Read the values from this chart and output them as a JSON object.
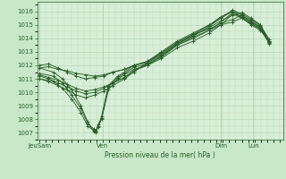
{
  "title": "Pression niveau de la mer( hPa )",
  "bg_color": "#c8e8c8",
  "plot_bg_color": "#d8efd8",
  "line_color": "#2a5e2a",
  "grid_color": "#b0d4b0",
  "tick_color": "#2a5e2a",
  "spine_color": "#2a5e2a",
  "ylim": [
    1006.5,
    1016.7
  ],
  "yticks": [
    1007,
    1008,
    1009,
    1010,
    1011,
    1012,
    1013,
    1014,
    1015,
    1016
  ],
  "xtick_labels": [
    "JeuSam",
    "Ven",
    "Dim",
    "Lun"
  ],
  "xtick_positions": [
    0.0,
    0.275,
    0.79,
    0.93
  ],
  "xlim": [
    -0.01,
    1.06
  ],
  "lines": [
    [
      0.0,
      1011.8,
      0.06,
      1011.5,
      0.1,
      1011.0,
      0.14,
      1010.2,
      0.18,
      1009.0,
      0.21,
      1007.8,
      0.235,
      1007.1,
      0.245,
      1007.05,
      0.255,
      1007.5,
      0.27,
      1008.2,
      0.3,
      1010.5,
      0.34,
      1011.2,
      0.37,
      1011.5,
      0.41,
      1012.0,
      0.47,
      1012.2,
      0.53,
      1012.8,
      0.6,
      1013.6,
      0.67,
      1014.2,
      0.74,
      1014.9,
      0.79,
      1015.5,
      0.84,
      1016.1,
      0.88,
      1015.8,
      0.92,
      1015.4,
      0.96,
      1015.0,
      1.0,
      1013.7
    ],
    [
      0.0,
      1011.0,
      0.06,
      1010.8,
      0.1,
      1010.3,
      0.14,
      1009.5,
      0.18,
      1008.5,
      0.21,
      1007.5,
      0.235,
      1007.2,
      0.245,
      1007.1,
      0.255,
      1007.4,
      0.27,
      1008.0,
      0.3,
      1010.2,
      0.34,
      1011.0,
      0.37,
      1011.3,
      0.41,
      1011.7,
      0.47,
      1012.0,
      0.53,
      1012.5,
      0.6,
      1013.3,
      0.67,
      1013.8,
      0.74,
      1014.4,
      0.79,
      1015.0,
      0.84,
      1015.8,
      0.88,
      1015.5,
      0.92,
      1015.1,
      0.96,
      1014.7,
      1.0,
      1013.6
    ],
    [
      0.0,
      1011.4,
      0.06,
      1011.2,
      0.1,
      1010.7,
      0.14,
      1009.8,
      0.18,
      1008.8,
      0.21,
      1007.7,
      0.235,
      1007.3,
      0.245,
      1007.15,
      0.255,
      1007.6,
      0.27,
      1008.1,
      0.3,
      1010.4,
      0.34,
      1011.1,
      0.37,
      1011.4,
      0.41,
      1011.85,
      0.47,
      1012.1,
      0.53,
      1012.6,
      0.6,
      1013.5,
      0.67,
      1014.0,
      0.74,
      1014.6,
      0.79,
      1015.2,
      0.84,
      1015.9,
      0.88,
      1015.6,
      0.92,
      1015.2,
      0.96,
      1014.85,
      1.0,
      1013.65
    ],
    [
      0.0,
      1012.0,
      0.04,
      1012.1,
      0.08,
      1011.8,
      0.12,
      1011.5,
      0.16,
      1011.2,
      0.2,
      1011.0,
      0.24,
      1011.1,
      0.28,
      1011.2,
      0.32,
      1011.5,
      0.37,
      1011.7,
      0.41,
      1011.95,
      0.47,
      1012.3,
      0.53,
      1012.9,
      0.6,
      1013.7,
      0.67,
      1014.3,
      0.74,
      1015.0,
      0.79,
      1015.6,
      0.84,
      1016.0,
      0.88,
      1015.5,
      0.92,
      1015.0,
      0.96,
      1014.6,
      1.0,
      1013.8
    ],
    [
      0.0,
      1011.2,
      0.04,
      1011.0,
      0.08,
      1010.7,
      0.12,
      1010.4,
      0.16,
      1010.1,
      0.2,
      1009.9,
      0.24,
      1010.0,
      0.28,
      1010.3,
      0.32,
      1010.7,
      0.37,
      1011.1,
      0.41,
      1011.6,
      0.47,
      1012.1,
      0.53,
      1012.7,
      0.6,
      1013.6,
      0.67,
      1014.2,
      0.74,
      1014.8,
      0.79,
      1015.3,
      0.84,
      1015.7,
      0.88,
      1015.9,
      0.92,
      1015.5,
      0.96,
      1015.0,
      1.0,
      1013.9
    ],
    [
      0.0,
      1011.0,
      0.04,
      1010.8,
      0.08,
      1010.5,
      0.12,
      1010.2,
      0.16,
      1009.8,
      0.2,
      1009.6,
      0.24,
      1009.8,
      0.28,
      1010.1,
      0.32,
      1010.5,
      0.37,
      1011.0,
      0.41,
      1011.5,
      0.47,
      1012.2,
      0.53,
      1012.9,
      0.6,
      1013.7,
      0.67,
      1014.3,
      0.74,
      1014.7,
      0.79,
      1015.1,
      0.84,
      1015.4,
      0.88,
      1015.7,
      0.92,
      1015.3,
      0.96,
      1014.9,
      1.0,
      1013.8
    ],
    [
      0.0,
      1011.8,
      0.04,
      1011.9,
      0.08,
      1011.7,
      0.12,
      1011.6,
      0.16,
      1011.4,
      0.2,
      1011.3,
      0.24,
      1011.2,
      0.28,
      1011.3,
      0.32,
      1011.5,
      0.37,
      1011.7,
      0.41,
      1012.0,
      0.47,
      1012.3,
      0.53,
      1013.0,
      0.6,
      1013.8,
      0.67,
      1014.4,
      0.74,
      1015.0,
      0.79,
      1015.5,
      0.84,
      1016.0,
      0.88,
      1015.7,
      0.92,
      1015.2,
      0.96,
      1014.8,
      1.0,
      1013.75
    ],
    [
      0.0,
      1011.3,
      0.04,
      1011.1,
      0.08,
      1010.9,
      0.12,
      1010.6,
      0.16,
      1010.3,
      0.2,
      1010.1,
      0.24,
      1010.2,
      0.28,
      1010.4,
      0.32,
      1010.7,
      0.37,
      1011.1,
      0.41,
      1011.6,
      0.47,
      1012.0,
      0.53,
      1012.7,
      0.6,
      1013.5,
      0.67,
      1014.1,
      0.74,
      1014.6,
      0.79,
      1015.0,
      0.84,
      1015.2,
      0.88,
      1015.5,
      0.92,
      1015.1,
      0.96,
      1014.7,
      1.0,
      1013.7
    ]
  ]
}
